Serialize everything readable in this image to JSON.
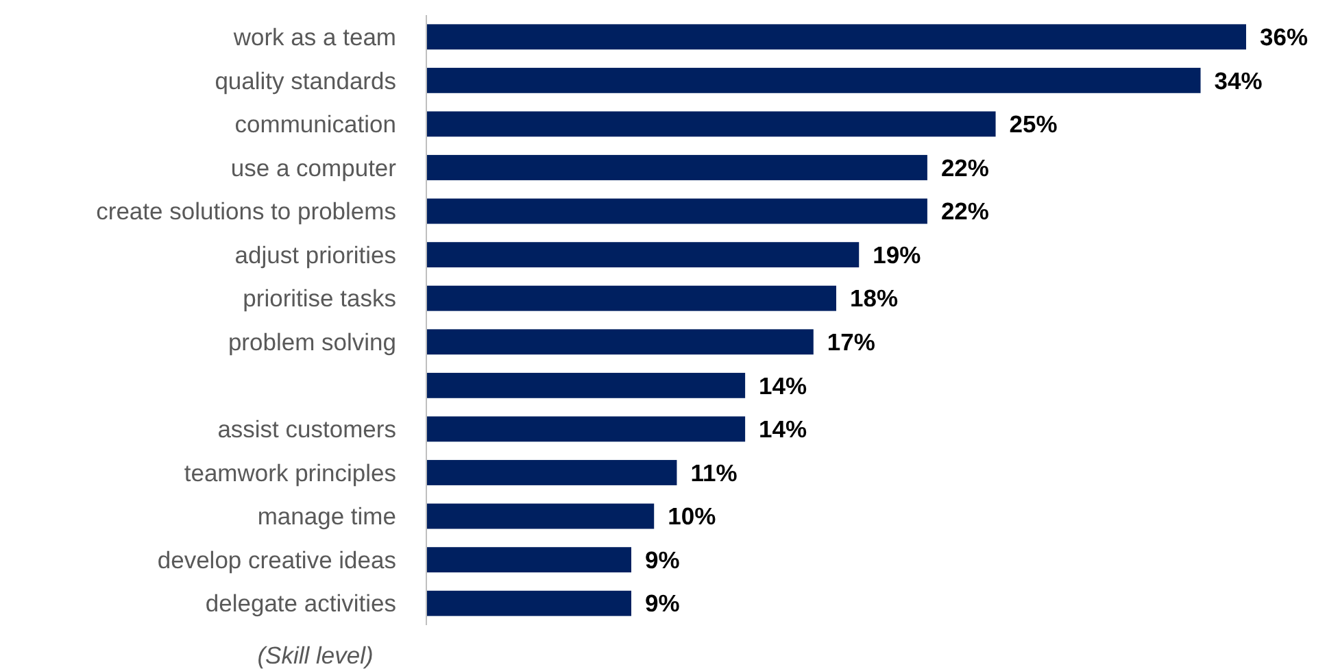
{
  "chart_data": {
    "type": "bar",
    "orientation": "horizontal",
    "ylabel": "(Skill level)",
    "categories": [
      "work as a team",
      "quality standards",
      "communication",
      "use a computer",
      "create solutions to problems",
      "adjust priorities",
      "prioritise tasks",
      "problem solving",
      null,
      "assist customers",
      "teamwork principles",
      "manage time",
      "develop creative ideas",
      "delegate activities"
    ],
    "values": [
      36,
      34,
      25,
      22,
      22,
      19,
      18,
      17,
      14,
      14,
      11,
      10,
      9,
      9
    ],
    "value_labels": [
      "36%",
      "34%",
      "25%",
      "22%",
      "22%",
      "19%",
      "18%",
      "17%",
      "14%",
      "14%",
      "11%",
      "10%",
      "9%",
      "9%"
    ],
    "color": "#002060"
  }
}
